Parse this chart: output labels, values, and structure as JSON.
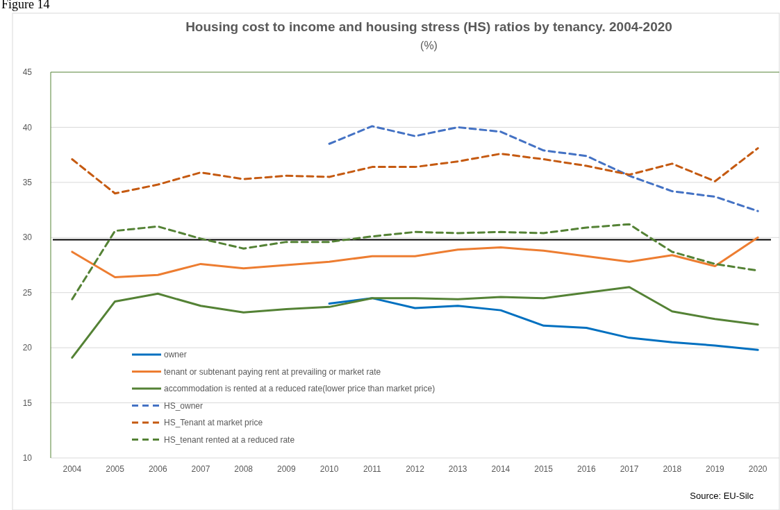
{
  "chart_data": {
    "type": "line",
    "title": "Housing  cost to income and housing stress (HS) ratios by tenancy. 2004-2020",
    "subtitle": "(%)",
    "categories": [
      "2004",
      "2005",
      "2006",
      "2007",
      "2008",
      "2009",
      "2010",
      "2011",
      "2012",
      "2013",
      "2014",
      "2015",
      "2016",
      "2017",
      "2018",
      "2019",
      "2020"
    ],
    "series": [
      {
        "name": "owner",
        "color": "#0070c0",
        "line_style": "solid",
        "values": [
          null,
          null,
          null,
          null,
          null,
          null,
          24.0,
          24.5,
          23.6,
          23.8,
          23.4,
          22.0,
          21.8,
          20.9,
          20.5,
          20.2,
          19.8
        ]
      },
      {
        "name": "tenant or subtenant paying rent at prevailing or market rate",
        "color": "#ed7d31",
        "line_style": "solid",
        "values": [
          28.7,
          26.4,
          26.6,
          27.6,
          27.2,
          27.5,
          27.8,
          28.3,
          28.3,
          28.9,
          29.1,
          28.8,
          28.3,
          27.8,
          28.4,
          27.4,
          30.0
        ]
      },
      {
        "name": "accommodation is rented at a reduced rate(lower price than market price)",
        "color": "#548235",
        "line_style": "solid",
        "values": [
          19.1,
          24.2,
          24.9,
          23.8,
          23.2,
          23.5,
          23.7,
          24.5,
          24.5,
          24.4,
          24.6,
          24.5,
          25.0,
          25.5,
          23.3,
          22.6,
          22.1
        ]
      },
      {
        "name": "HS_owner",
        "color": "#4472c4",
        "line_style": "dashed",
        "values": [
          null,
          null,
          null,
          null,
          null,
          null,
          38.5,
          40.1,
          39.2,
          40.0,
          39.6,
          37.9,
          37.4,
          35.6,
          34.2,
          33.7,
          32.4
        ]
      },
      {
        "name": "HS_Tenant at market price",
        "color": "#c55a11",
        "line_style": "dashed",
        "values": [
          37.1,
          34.0,
          34.8,
          35.9,
          35.3,
          35.6,
          35.5,
          36.4,
          36.4,
          36.9,
          37.6,
          37.1,
          36.5,
          35.7,
          36.7,
          35.1,
          38.1
        ]
      },
      {
        "name": "HS_tenant rented at a reduced rate",
        "color": "#548235",
        "line_style": "dashed",
        "values": [
          24.4,
          30.6,
          31.0,
          29.9,
          29.0,
          29.6,
          29.6,
          30.1,
          30.5,
          30.4,
          30.5,
          30.4,
          30.9,
          31.2,
          28.7,
          27.6,
          27.0
        ]
      }
    ],
    "ylim": [
      10,
      45
    ],
    "yticks": [
      10,
      15,
      20,
      25,
      30,
      35,
      40,
      45
    ],
    "grid": "y",
    "legend": "bottom left",
    "marker": "none",
    "ref_lines": [
      {
        "axis": "y",
        "value": 29.8,
        "color": "#000000"
      }
    ],
    "annotations": [
      "Source: EU-Silc",
      "Figure 14"
    ]
  }
}
